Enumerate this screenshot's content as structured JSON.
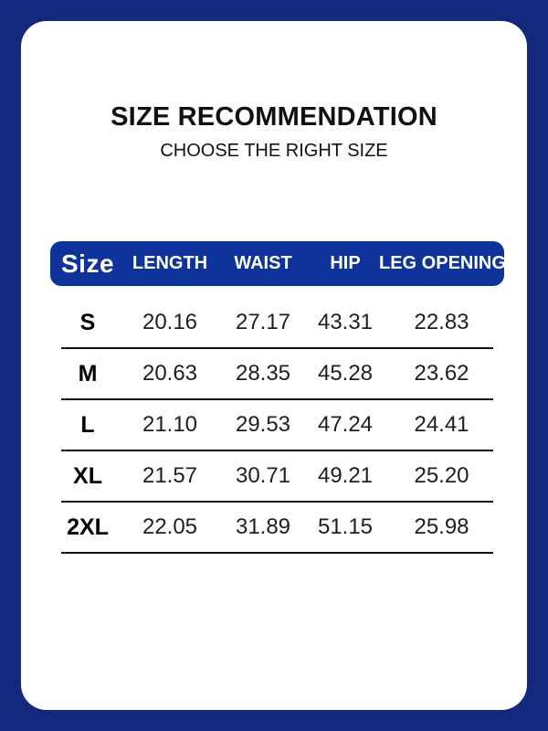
{
  "page": {
    "title": "SIZE RECOMMENDATION",
    "subtitle": "CHOOSE THE RIGHT SIZE"
  },
  "colors": {
    "background": "#13297d",
    "card": "#ffffff",
    "header_bar": "#0e339b",
    "header_text": "#ffffff",
    "text": "#111111",
    "separator": "#111111"
  },
  "chart_data": {
    "type": "table",
    "title": "SIZE RECOMMENDATION",
    "subtitle": "CHOOSE THE RIGHT SIZE",
    "columns": [
      "Size",
      "LENGTH",
      "WAIST",
      "HIP",
      "LEG OPENING"
    ],
    "rows": [
      {
        "size": "S",
        "values": [
          "20.16",
          "27.17",
          "43.31",
          "22.83"
        ]
      },
      {
        "size": "M",
        "values": [
          "20.63",
          "28.35",
          "45.28",
          "23.62"
        ]
      },
      {
        "size": "L",
        "values": [
          "21.10",
          "29.53",
          "47.24",
          "24.41"
        ]
      },
      {
        "size": "XL",
        "values": [
          "21.57",
          "30.71",
          "49.21",
          "25.20"
        ]
      },
      {
        "size": "2XL",
        "values": [
          "22.05",
          "31.89",
          "51.15",
          "25.98"
        ]
      }
    ]
  }
}
